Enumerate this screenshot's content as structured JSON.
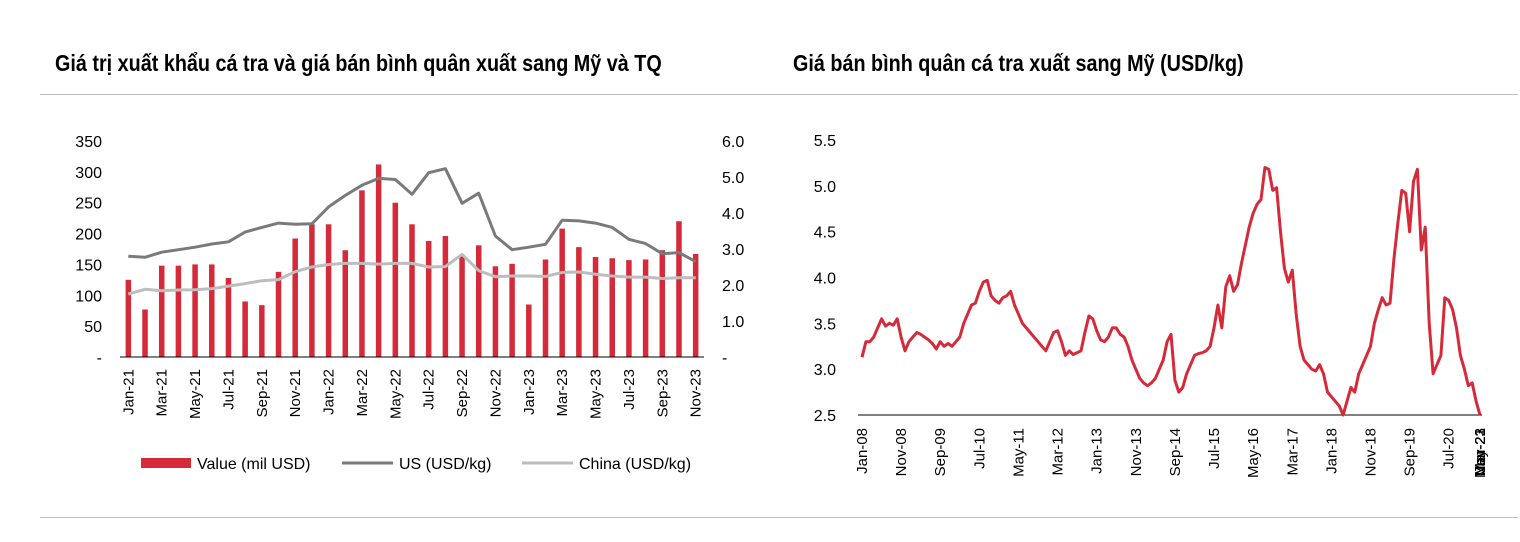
{
  "titles": {
    "left": "Giá trị xuất khẩu cá tra và giá bán bình quân xuất sang Mỹ và TQ",
    "right": "Giá bán bình quân cá tra xuất sang Mỹ (USD/kg)"
  },
  "colors": {
    "value_bar": "#d42a3a",
    "us_line": "#7a7a7a",
    "china_line": "#bdbdbd",
    "price_line": "#d42a3a"
  },
  "chart_data": [
    {
      "type": "bar",
      "title": "Giá trị xuất khẩu cá tra và giá bán bình quân xuất sang Mỹ và TQ",
      "months": [
        "Jan-21",
        "Feb-21",
        "Mar-21",
        "Apr-21",
        "May-21",
        "Jun-21",
        "Jul-21",
        "Aug-21",
        "Sep-21",
        "Oct-21",
        "Nov-21",
        "Dec-21",
        "Jan-22",
        "Feb-22",
        "Mar-22",
        "Apr-22",
        "May-22",
        "Jun-22",
        "Jul-22",
        "Aug-22",
        "Sep-22",
        "Oct-22",
        "Nov-22",
        "Dec-22",
        "Jan-23",
        "Feb-23",
        "Mar-23",
        "Apr-23",
        "May-23",
        "Jun-23",
        "Jul-23",
        "Aug-23",
        "Sep-23",
        "Oct-23",
        "Nov-23"
      ],
      "x_tick_labels": [
        "Jan-21",
        "Mar-21",
        "May-21",
        "Jul-21",
        "Sep-21",
        "Nov-21",
        "Jan-22",
        "Mar-22",
        "May-22",
        "Jul-22",
        "Sep-22",
        "Nov-22",
        "Jan-23",
        "Mar-23",
        "May-23",
        "Jul-23",
        "Sep-23",
        "Nov-23"
      ],
      "y_left": {
        "range": [
          0,
          350
        ],
        "ticks": [
          "-",
          "50",
          "100",
          "150",
          "200",
          "250",
          "300",
          "350"
        ]
      },
      "y_right": {
        "range": [
          0,
          6
        ],
        "ticks": [
          "-",
          "1.0",
          "2.0",
          "3.0",
          "4.0",
          "5.0",
          "6.0"
        ]
      },
      "series": [
        {
          "name": "Value (mil USD)",
          "kind": "bar",
          "axis": "left",
          "values": [
            125,
            77,
            148,
            148,
            150,
            150,
            128,
            90,
            84,
            138,
            192,
            215,
            215,
            173,
            270,
            312,
            250,
            215,
            188,
            196,
            163,
            181,
            147,
            151,
            85,
            158,
            208,
            178,
            162,
            160,
            157,
            158,
            173,
            220,
            167
          ]
        },
        {
          "name": "US (USD/kg)",
          "kind": "line",
          "axis": "right",
          "values": [
            2.8,
            2.77,
            2.91,
            2.98,
            3.05,
            3.14,
            3.2,
            3.47,
            3.6,
            3.72,
            3.69,
            3.7,
            4.17,
            4.49,
            4.77,
            4.96,
            4.93,
            4.52,
            5.12,
            5.23,
            4.27,
            4.55,
            3.36,
            2.98,
            3.05,
            3.13,
            3.8,
            3.78,
            3.72,
            3.6,
            3.27,
            3.15,
            2.87,
            2.9,
            2.65
          ]
        },
        {
          "name": "China (USD/kg)",
          "kind": "line",
          "axis": "right",
          "values": [
            1.75,
            1.88,
            1.84,
            1.86,
            1.87,
            1.9,
            1.97,
            2.04,
            2.12,
            2.15,
            2.37,
            2.5,
            2.57,
            2.6,
            2.6,
            2.58,
            2.6,
            2.6,
            2.5,
            2.51,
            2.85,
            2.4,
            2.23,
            2.25,
            2.25,
            2.24,
            2.35,
            2.36,
            2.3,
            2.25,
            2.22,
            2.22,
            2.18,
            2.2,
            2.2
          ]
        }
      ],
      "legend": [
        "Value (mil USD)",
        "US (USD/kg)",
        "China (USD/kg)"
      ]
    },
    {
      "type": "line",
      "title": "Giá bán bình quân cá tra xuất sang Mỹ (USD/kg)",
      "x_tick_labels": [
        "Jan-08",
        "Nov-08",
        "Sep-09",
        "Jul-10",
        "May-11",
        "Mar-12",
        "Jan-13",
        "Nov-13",
        "Sep-14",
        "Jul-15",
        "May-16",
        "Mar-17",
        "Jan-18",
        "Nov-18",
        "Sep-19",
        "Jul-20",
        "May-21",
        "Mar-22",
        "Jan-23",
        "Nov-23"
      ],
      "ylim": [
        2.5,
        5.5
      ],
      "y_ticks": [
        "2.5",
        "3.0",
        "3.5",
        "4.0",
        "4.5",
        "5.0",
        "5.5"
      ],
      "points": [
        [
          0,
          3.13
        ],
        [
          1,
          3.3
        ],
        [
          2,
          3.3
        ],
        [
          3,
          3.35
        ],
        [
          4,
          3.45
        ],
        [
          5,
          3.55
        ],
        [
          6,
          3.47
        ],
        [
          7,
          3.5
        ],
        [
          8,
          3.48
        ],
        [
          9,
          3.55
        ],
        [
          10,
          3.35
        ],
        [
          11,
          3.2
        ],
        [
          12,
          3.3
        ],
        [
          13,
          3.35
        ],
        [
          14,
          3.4
        ],
        [
          15,
          3.38
        ],
        [
          16,
          3.35
        ],
        [
          17,
          3.32
        ],
        [
          18,
          3.28
        ],
        [
          19,
          3.22
        ],
        [
          20,
          3.3
        ],
        [
          21,
          3.25
        ],
        [
          22,
          3.28
        ],
        [
          23,
          3.25
        ],
        [
          24,
          3.3
        ],
        [
          25,
          3.35
        ],
        [
          26,
          3.5
        ],
        [
          27,
          3.6
        ],
        [
          28,
          3.7
        ],
        [
          29,
          3.72
        ],
        [
          30,
          3.85
        ],
        [
          31,
          3.95
        ],
        [
          32,
          3.97
        ],
        [
          33,
          3.8
        ],
        [
          34,
          3.75
        ],
        [
          35,
          3.72
        ],
        [
          36,
          3.78
        ],
        [
          37,
          3.8
        ],
        [
          38,
          3.85
        ],
        [
          39,
          3.7
        ],
        [
          40,
          3.6
        ],
        [
          41,
          3.5
        ],
        [
          42,
          3.45
        ],
        [
          43,
          3.4
        ],
        [
          44,
          3.35
        ],
        [
          45,
          3.3
        ],
        [
          46,
          3.25
        ],
        [
          47,
          3.2
        ],
        [
          48,
          3.3
        ],
        [
          49,
          3.4
        ],
        [
          50,
          3.42
        ],
        [
          51,
          3.3
        ],
        [
          52,
          3.15
        ],
        [
          53,
          3.2
        ],
        [
          54,
          3.16
        ],
        [
          55,
          3.18
        ],
        [
          56,
          3.2
        ],
        [
          57,
          3.4
        ],
        [
          58,
          3.58
        ],
        [
          59,
          3.55
        ],
        [
          60,
          3.42
        ],
        [
          61,
          3.32
        ],
        [
          62,
          3.3
        ],
        [
          63,
          3.35
        ],
        [
          64,
          3.45
        ],
        [
          65,
          3.45
        ],
        [
          66,
          3.38
        ],
        [
          67,
          3.35
        ],
        [
          68,
          3.25
        ],
        [
          69,
          3.1
        ],
        [
          70,
          3.0
        ],
        [
          71,
          2.9
        ],
        [
          72,
          2.85
        ],
        [
          73,
          2.82
        ],
        [
          74,
          2.85
        ],
        [
          75,
          2.9
        ],
        [
          76,
          3.0
        ],
        [
          77,
          3.1
        ],
        [
          78,
          3.3
        ],
        [
          79,
          3.38
        ],
        [
          80,
          2.88
        ],
        [
          81,
          2.75
        ],
        [
          82,
          2.8
        ],
        [
          83,
          2.95
        ],
        [
          84,
          3.05
        ],
        [
          85,
          3.15
        ],
        [
          86,
          3.17
        ],
        [
          87,
          3.18
        ],
        [
          88,
          3.2
        ],
        [
          89,
          3.25
        ],
        [
          90,
          3.45
        ],
        [
          91,
          3.7
        ],
        [
          92,
          3.45
        ],
        [
          93,
          3.9
        ],
        [
          94,
          4.02
        ],
        [
          95,
          3.85
        ],
        [
          96,
          3.92
        ],
        [
          97,
          4.15
        ],
        [
          98,
          4.35
        ],
        [
          99,
          4.55
        ],
        [
          100,
          4.7
        ],
        [
          101,
          4.8
        ],
        [
          102,
          4.85
        ],
        [
          103,
          5.2
        ],
        [
          104,
          5.18
        ],
        [
          105,
          4.95
        ],
        [
          106,
          4.98
        ],
        [
          107,
          4.5
        ],
        [
          108,
          4.1
        ],
        [
          109,
          3.95
        ],
        [
          110,
          4.08
        ],
        [
          111,
          3.6
        ],
        [
          112,
          3.25
        ],
        [
          113,
          3.1
        ],
        [
          114,
          3.05
        ],
        [
          115,
          3.0
        ],
        [
          116,
          2.98
        ],
        [
          117,
          3.05
        ],
        [
          118,
          2.95
        ],
        [
          119,
          2.75
        ],
        [
          120,
          2.7
        ],
        [
          121,
          2.65
        ],
        [
          122,
          2.6
        ],
        [
          123,
          2.5
        ],
        [
          124,
          2.65
        ],
        [
          125,
          2.8
        ],
        [
          126,
          2.75
        ],
        [
          127,
          2.95
        ],
        [
          128,
          3.05
        ],
        [
          129,
          3.15
        ],
        [
          130,
          3.25
        ],
        [
          131,
          3.5
        ],
        [
          132,
          3.65
        ],
        [
          133,
          3.78
        ],
        [
          134,
          3.7
        ],
        [
          135,
          3.72
        ],
        [
          136,
          4.2
        ],
        [
          137,
          4.6
        ],
        [
          138,
          4.95
        ],
        [
          139,
          4.92
        ],
        [
          140,
          4.5
        ],
        [
          141,
          5.05
        ],
        [
          142,
          5.18
        ],
        [
          143,
          4.3
        ],
        [
          144,
          4.55
        ],
        [
          145,
          3.5
        ],
        [
          146,
          2.95
        ],
        [
          147,
          3.05
        ],
        [
          148,
          3.15
        ],
        [
          149,
          3.78
        ],
        [
          150,
          3.75
        ],
        [
          151,
          3.65
        ],
        [
          152,
          3.45
        ],
        [
          153,
          3.15
        ],
        [
          154,
          3.0
        ],
        [
          155,
          2.82
        ],
        [
          156,
          2.85
        ],
        [
          157,
          2.65
        ],
        [
          158,
          2.5
        ]
      ]
    }
  ]
}
